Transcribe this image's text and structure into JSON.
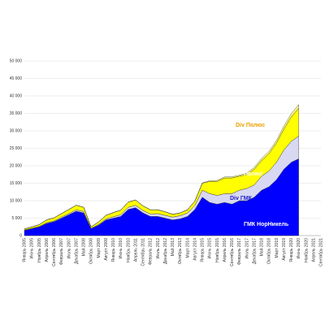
{
  "chart_data": {
    "type": "stacked_area",
    "categories": [
      "Январь 2005",
      "Июнь 2005",
      "Ноябрь 2005",
      "Апрель 2006",
      "Сентябрь 2006",
      "Февраль 2007",
      "Июль 2007",
      "Декабрь 2007",
      "Май 2008",
      "Октябрь 2008",
      "Март 2009",
      "Август 2009",
      "Январь 2010",
      "Июнь 2010",
      "Ноябрь 2010",
      "Апрель 2011",
      "Сентябрь 2011",
      "Февраль 2012",
      "Июль 2012",
      "Декабрь 2012",
      "Май 2013",
      "Октябрь 2013",
      "Март 2014",
      "Август 2014",
      "Январь 2015",
      "Июнь 2015",
      "Ноябрь 2015",
      "Апрель 2016",
      "Сентябрь 2016",
      "Февраль 2017",
      "Июль 2017",
      "Декабрь 2017",
      "Май 2018",
      "Октябрь 2018",
      "Март 2019",
      "Август 2019",
      "Январь 2020",
      "Июнь 2020",
      "Ноябрь 2020",
      "Апрель 2021",
      "Сентябрь 2021"
    ],
    "series": [
      {
        "name": "ГМК НорНикель",
        "color": "#0000ff",
        "values": [
          1500,
          2000,
          2500,
          3500,
          4000,
          5000,
          6000,
          7000,
          6500,
          2000,
          3000,
          4500,
          5000,
          5500,
          7500,
          8000,
          6500,
          5500,
          5500,
          5000,
          4500,
          4800,
          5500,
          7500,
          11000,
          9500,
          9000,
          9500,
          9000,
          10000,
          10000,
          11000,
          13000,
          14000,
          16000,
          19000,
          21000,
          22000,
          null,
          null,
          null
        ]
      },
      {
        "name": "Div ГМК",
        "color": "#d8d8f2",
        "values": [
          100,
          100,
          150,
          200,
          200,
          300,
          300,
          400,
          400,
          100,
          200,
          300,
          400,
          500,
          600,
          700,
          700,
          700,
          800,
          800,
          800,
          900,
          1000,
          1200,
          2000,
          2500,
          2500,
          2500,
          3000,
          3000,
          3500,
          3500,
          4000,
          4500,
          5000,
          5500,
          6000,
          6500,
          null,
          null,
          null
        ]
      },
      {
        "name": "Полюс",
        "color": "#ffff00",
        "values": [
          300,
          400,
          500,
          800,
          900,
          1000,
          1200,
          1300,
          1200,
          400,
          700,
          1000,
          1200,
          1300,
          1500,
          1500,
          1300,
          1200,
          1100,
          1000,
          800,
          800,
          900,
          1200,
          2000,
          3500,
          4000,
          4500,
          4500,
          4000,
          4000,
          4500,
          4500,
          5000,
          5500,
          6000,
          7000,
          8000,
          null,
          null,
          null
        ]
      },
      {
        "name": "Div Полюс",
        "color": "#ffff80",
        "values": [
          0,
          0,
          0,
          0,
          0,
          0,
          0,
          0,
          0,
          0,
          0,
          0,
          0,
          0,
          0,
          0,
          0,
          0,
          0,
          0,
          0,
          0,
          0,
          0,
          100,
          200,
          300,
          300,
          300,
          300,
          400,
          500,
          600,
          600,
          700,
          800,
          900,
          1000,
          null,
          null,
          null
        ]
      }
    ],
    "ylim": [
      0,
      50000
    ],
    "yticks": [
      0,
      {
        "value": 5000,
        "label": "5 000"
      },
      {
        "value": 10000,
        "label": "10 000"
      },
      {
        "value": 15000,
        "label": "15 000"
      },
      {
        "value": 20000,
        "label": "20 000"
      },
      {
        "value": 25000,
        "label": "25 000"
      },
      {
        "value": 30000,
        "label": "30 000"
      },
      {
        "value": 35000,
        "label": "35 000"
      },
      {
        "value": 40000,
        "label": "40 000"
      },
      {
        "value": 45000,
        "label": "45 000"
      },
      {
        "value": 50000,
        "label": "50 000"
      }
    ],
    "grid": true
  }
}
